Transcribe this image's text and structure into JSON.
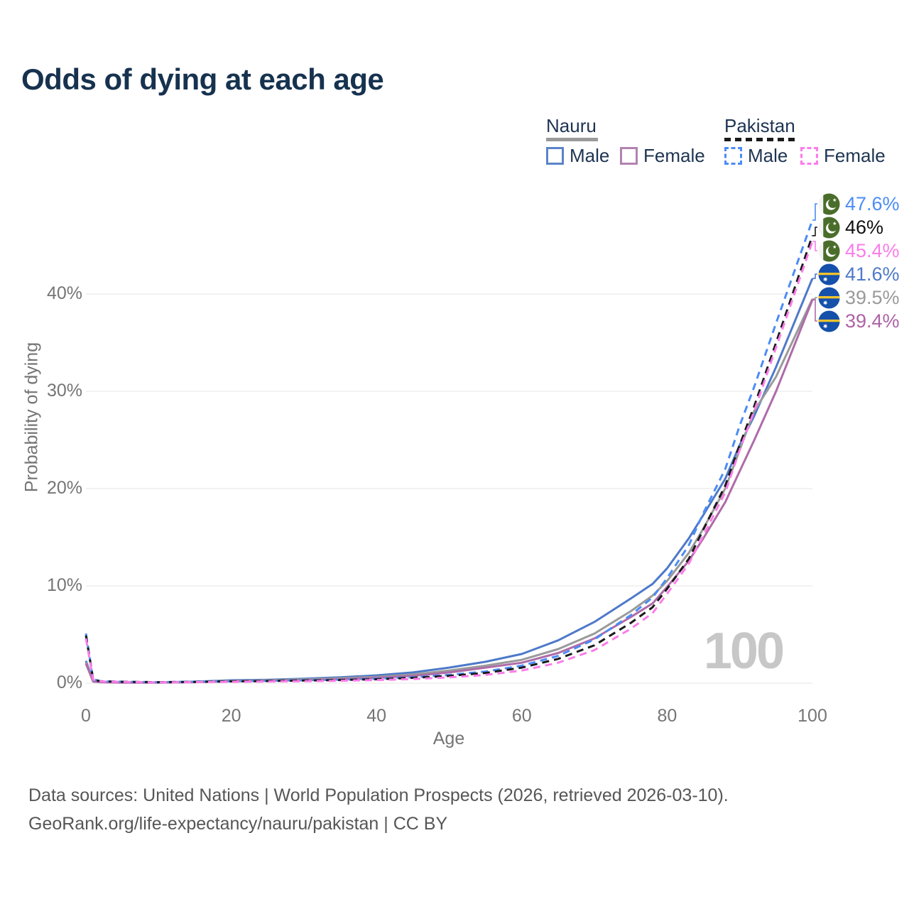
{
  "title": "Odds of dying at each age",
  "watermark": "100",
  "legend": {
    "groups": [
      {
        "label": "Nauru",
        "line_style": "solid",
        "line_color": "#9a9a9a"
      },
      {
        "label": "Pakistan",
        "line_style": "dashed",
        "line_color": "#1a1a1a"
      }
    ],
    "items": [
      {
        "group": "Nauru",
        "label": "Male",
        "color": "#4e79c9",
        "style": "solid"
      },
      {
        "group": "Nauru",
        "label": "Female",
        "color": "#b183b0",
        "style": "solid"
      },
      {
        "group": "Pakistan",
        "label": "Male",
        "color": "#4b8cf7",
        "style": "dashed"
      },
      {
        "group": "Pakistan",
        "label": "Female",
        "color": "#fb7ce9",
        "style": "dashed"
      }
    ]
  },
  "footer": {
    "line1": "Data sources: United Nations | World Population Prospects (2026, retrieved 2026-03-10).",
    "line2": "GeoRank.org/life-expectancy/nauru/pakistan | CC BY"
  },
  "colors": {
    "background": "#ffffff",
    "grid": "#e9e9e9",
    "title_text": "#16324f",
    "legend_text": "#1e3452",
    "axis_text": "#757575",
    "footer_text": "#565656",
    "watermark_text": "#c7c7c7",
    "pakistan_flag_green": "#4a6d2b",
    "nauru_flag_blue": "#1550ab",
    "nauru_flag_yellow": "#efc32e"
  },
  "chart_data": {
    "type": "line",
    "title": "Odds of dying at each age",
    "xlabel": "Age",
    "ylabel": "Probability of dying",
    "xlim": [
      0,
      100
    ],
    "ylim": [
      0,
      48
    ],
    "grid": "horizontal",
    "legend_position": "top-right",
    "xticks": [
      0,
      20,
      40,
      60,
      80,
      100
    ],
    "yticks": [
      {
        "value": 0,
        "label": "0%"
      },
      {
        "value": 10,
        "label": "10%"
      },
      {
        "value": 20,
        "label": "20%"
      },
      {
        "value": 30,
        "label": "30%"
      },
      {
        "value": 40,
        "label": "40%"
      }
    ],
    "x": [
      0,
      1,
      2,
      5,
      10,
      15,
      20,
      25,
      30,
      35,
      40,
      45,
      50,
      55,
      60,
      65,
      70,
      75,
      78,
      80,
      83,
      85,
      88,
      90,
      92,
      95,
      100
    ],
    "series": [
      {
        "id": "pakistan-male",
        "name": "Pakistan Male",
        "country": "pakistan",
        "sex": "male",
        "color": "#4b8cf7",
        "label_color": "#4b8cf7",
        "dash": "dashed",
        "end_label": "47.6%",
        "end_value": 47.6,
        "values": [
          5.1,
          0.4,
          0.2,
          0.15,
          0.1,
          0.15,
          0.2,
          0.25,
          0.3,
          0.35,
          0.45,
          0.6,
          0.85,
          1.2,
          1.8,
          2.8,
          4.5,
          7.0,
          8.8,
          10.8,
          14.2,
          17.5,
          22.0,
          26.5,
          30.5,
          37.0,
          47.6
        ]
      },
      {
        "id": "pakistan-both",
        "name": "Pakistan Both sexes",
        "country": "pakistan",
        "sex": "both",
        "color": "#1a1a1a",
        "label_color": "#111111",
        "dash": "dashed",
        "end_label": "46%",
        "end_value": 46.0,
        "values": [
          4.9,
          0.38,
          0.19,
          0.14,
          0.1,
          0.13,
          0.18,
          0.22,
          0.27,
          0.32,
          0.4,
          0.55,
          0.75,
          1.05,
          1.6,
          2.5,
          3.9,
          6.2,
          7.8,
          9.7,
          12.8,
          15.8,
          20.3,
          24.5,
          28.5,
          35.0,
          46.0
        ]
      },
      {
        "id": "pakistan-female",
        "name": "Pakistan Female",
        "country": "pakistan",
        "sex": "female",
        "color": "#fb7ce9",
        "label_color": "#fb7ce9",
        "dash": "dashed",
        "end_label": "45.4%",
        "end_value": 45.4,
        "values": [
          4.6,
          0.36,
          0.18,
          0.13,
          0.09,
          0.11,
          0.14,
          0.17,
          0.2,
          0.25,
          0.32,
          0.42,
          0.6,
          0.85,
          1.3,
          2.1,
          3.4,
          5.6,
          7.2,
          9.2,
          12.3,
          15.2,
          19.6,
          24.0,
          28.0,
          34.5,
          45.4
        ]
      },
      {
        "id": "nauru-male",
        "name": "Nauru Male",
        "country": "nauru",
        "sex": "male",
        "color": "#4e79c9",
        "label_color": "#4e79c9",
        "dash": "solid",
        "end_label": "41.6%",
        "end_value": 41.6,
        "values": [
          2.3,
          0.2,
          0.12,
          0.08,
          0.08,
          0.15,
          0.3,
          0.35,
          0.45,
          0.6,
          0.8,
          1.1,
          1.6,
          2.2,
          3.0,
          4.4,
          6.3,
          8.7,
          10.2,
          11.8,
          14.9,
          17.3,
          21.0,
          24.5,
          27.5,
          32.5,
          41.6
        ]
      },
      {
        "id": "nauru-both",
        "name": "Nauru Both sexes",
        "country": "nauru",
        "sex": "both",
        "color": "#9a9a9a",
        "label_color": "#9a9a9a",
        "dash": "solid",
        "end_label": "39.5%",
        "end_value": 39.5,
        "values": [
          2.15,
          0.18,
          0.11,
          0.07,
          0.07,
          0.13,
          0.25,
          0.3,
          0.38,
          0.5,
          0.65,
          0.9,
          1.3,
          1.8,
          2.4,
          3.5,
          5.1,
          7.4,
          9.0,
          10.5,
          13.4,
          15.9,
          20.0,
          24.0,
          28.0,
          31.5,
          39.5
        ]
      },
      {
        "id": "nauru-female",
        "name": "Nauru Female",
        "country": "nauru",
        "sex": "female",
        "color": "#ae6ba8",
        "label_color": "#ad62a5",
        "dash": "solid",
        "end_label": "39.4%",
        "end_value": 39.4,
        "values": [
          2.0,
          0.17,
          0.1,
          0.06,
          0.06,
          0.1,
          0.2,
          0.25,
          0.3,
          0.4,
          0.55,
          0.75,
          1.1,
          1.6,
          2.1,
          3.1,
          4.6,
          6.8,
          8.2,
          9.9,
          12.6,
          14.9,
          18.6,
          21.8,
          25.0,
          30.0,
          39.4
        ]
      }
    ]
  }
}
